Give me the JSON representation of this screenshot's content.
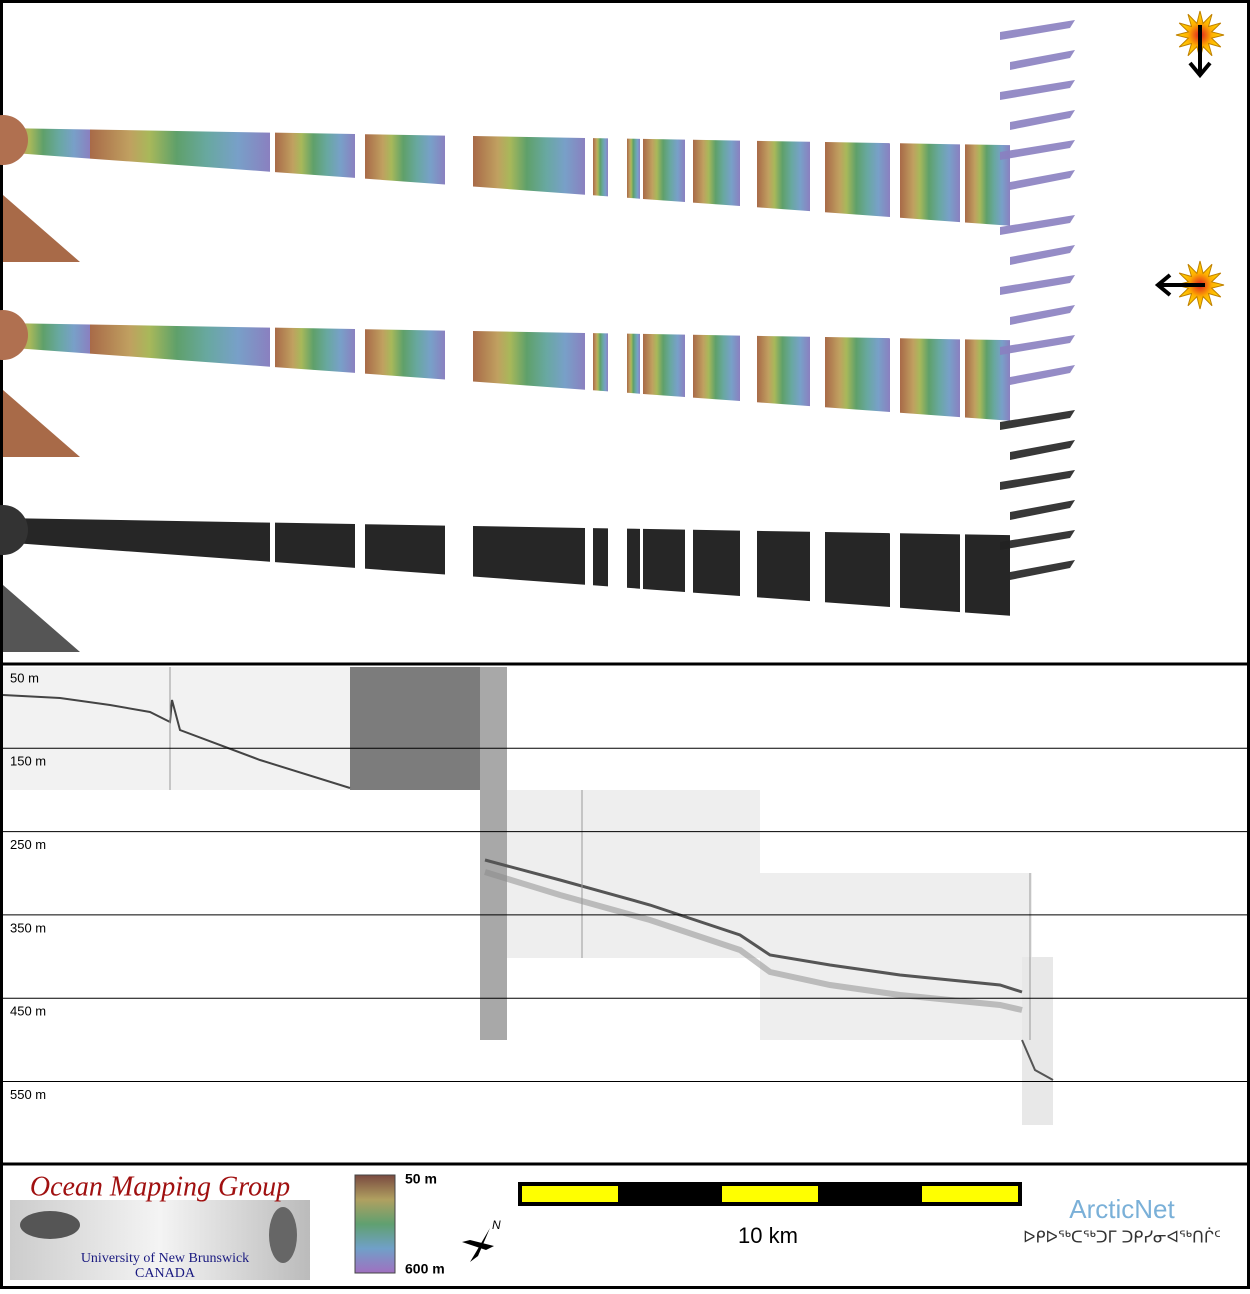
{
  "profile": {
    "depth_labels": [
      "50 m",
      "150 m",
      "250 m",
      "350 m",
      "450 m",
      "550 m"
    ]
  },
  "legend": {
    "colorbar_top": "50 m",
    "colorbar_bottom": "600 m",
    "scale": "10 km",
    "north": "N"
  },
  "logos": {
    "omg_title": "Ocean Mapping Group",
    "omg_university": "University of New Brunswick",
    "omg_country": "CANADA",
    "arcticnet": "ArcticNet",
    "arcticnet_inuktitut": "ᐅᑭᐅᖅᑕᖅᑐᒥ ᑐᑭᓯᓂᐊᖅᑎᒌᑦ"
  }
}
